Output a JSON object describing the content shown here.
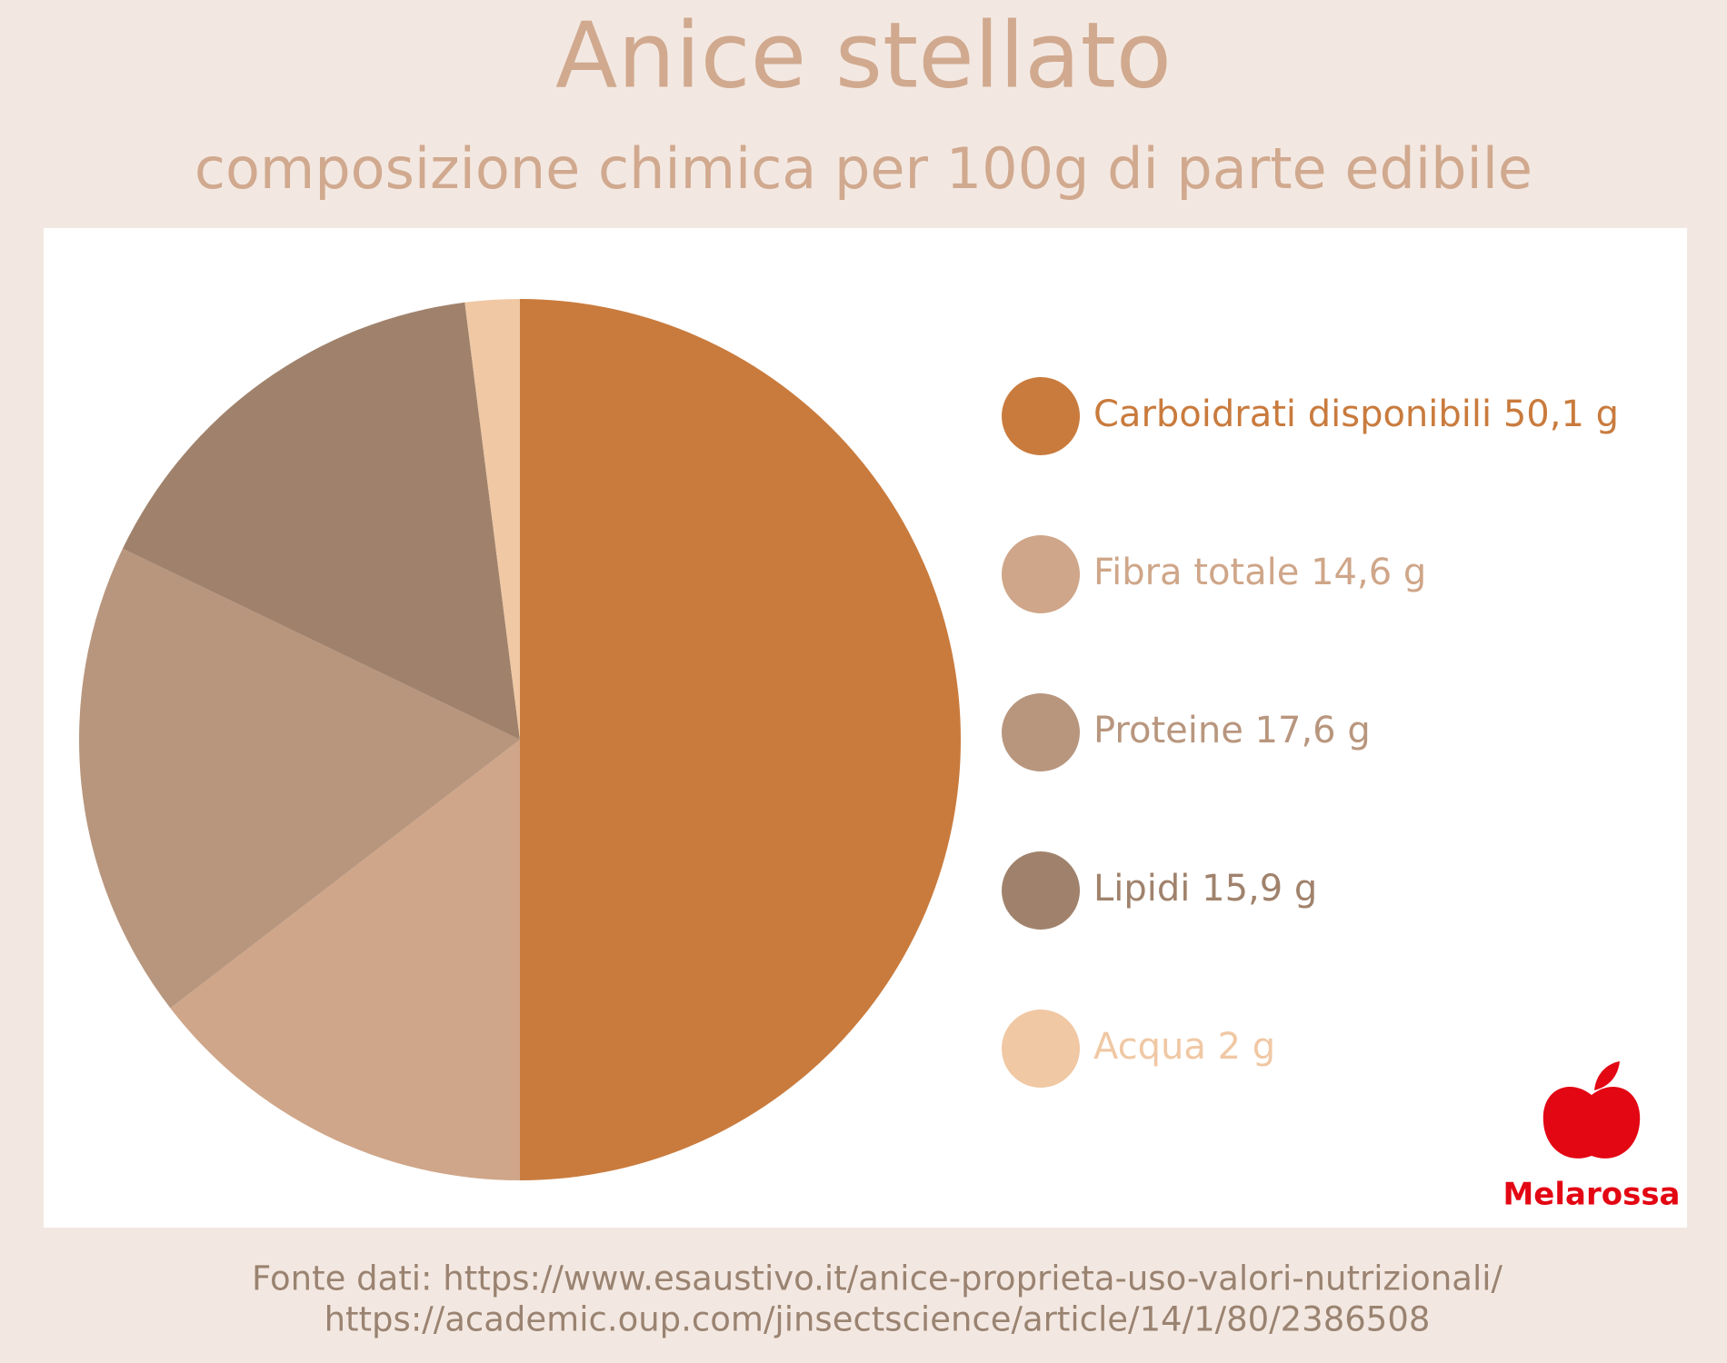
{
  "chart_data": {
    "type": "pie",
    "title": "Anice stellato",
    "subtitle": "composizione chimica per 100g di parte edibile",
    "categories": [
      "Carboidrati disponibili",
      "Fibra totale",
      "Proteine",
      "Lipidi",
      "Acqua"
    ],
    "values": [
      50.1,
      14.6,
      17.6,
      15.9,
      2
    ],
    "value_labels": [
      "50,1 g",
      "14,6 g",
      "17,6 g",
      "15,9 g",
      "2 g"
    ],
    "colors": [
      "#c97b3d",
      "#cfa689",
      "#b8967e",
      "#a0826c",
      "#f0c8a4"
    ],
    "source": [
      "Fonte dati: https://www.esaustivo.it/anice-proprieta-uso-valori-nutrizionali/",
      "https://academic.oup.com/jinsectscience/article/14/1/80/2386508"
    ],
    "brand": "Melarossa"
  }
}
